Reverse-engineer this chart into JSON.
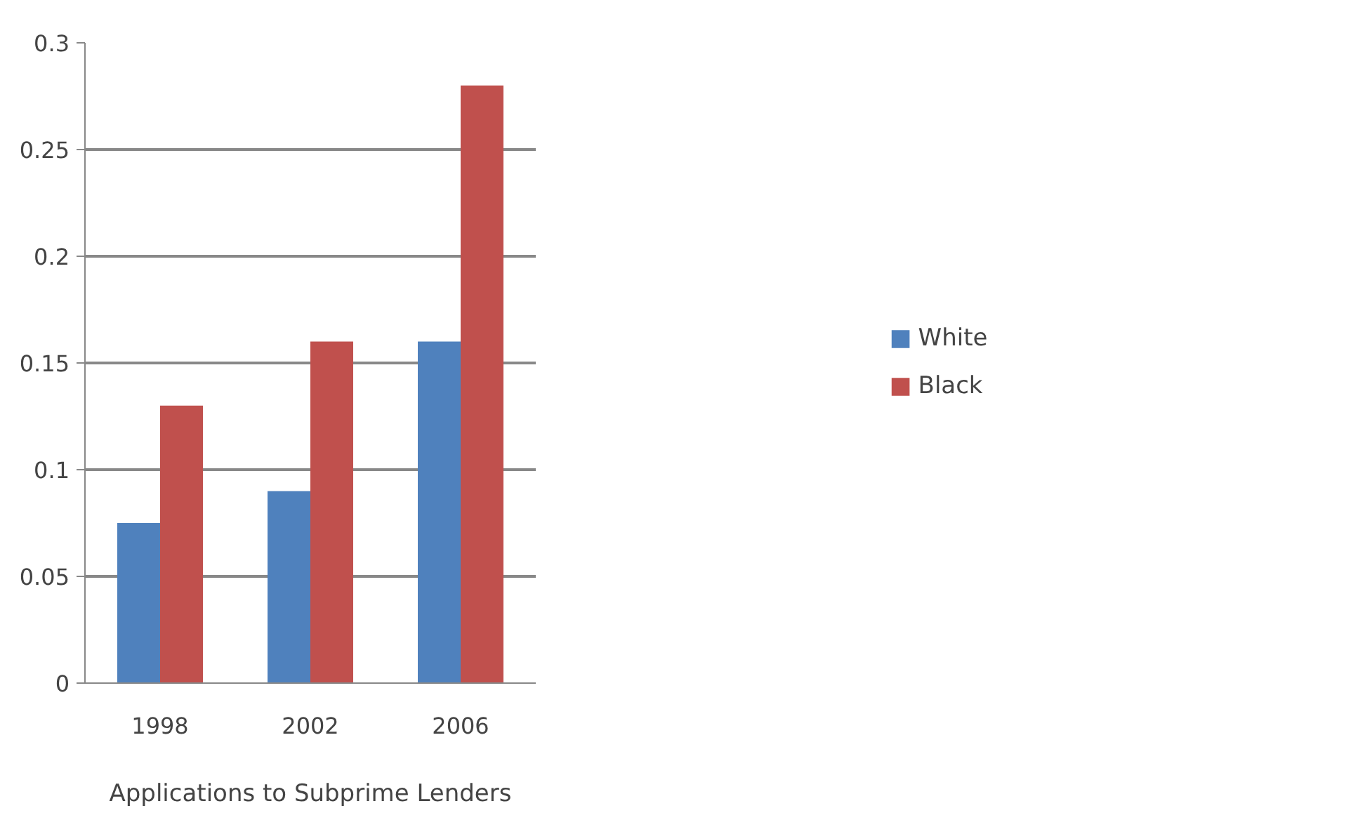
{
  "chart_data": {
    "type": "bar",
    "xlabel": "Applications to Subprime Lenders",
    "categories": [
      "1998",
      "2002",
      "2006"
    ],
    "series": [
      {
        "name": "White",
        "color": "#4f81bd",
        "values": [
          0.075,
          0.09,
          0.16
        ]
      },
      {
        "name": "Black",
        "color": "#c0504d",
        "values": [
          0.13,
          0.16,
          0.28
        ]
      }
    ],
    "ylim": [
      0,
      0.3
    ],
    "yticks": [
      0,
      0.05,
      0.1,
      0.15,
      0.2,
      0.25,
      0.3
    ],
    "grid": "y",
    "legend": "right"
  }
}
